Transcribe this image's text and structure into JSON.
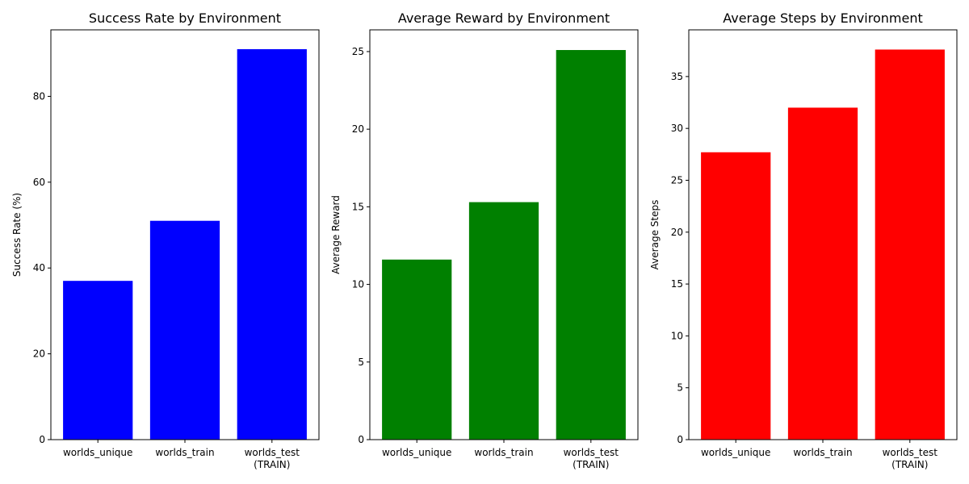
{
  "chart_data": [
    {
      "type": "bar",
      "title": "Success Rate by Environment",
      "xlabel": "",
      "ylabel": "Success Rate (%)",
      "categories": [
        "worlds_unique",
        "worlds_train",
        "worlds_test\n(TRAIN)"
      ],
      "values": [
        37.0,
        51.0,
        91.0
      ],
      "ylim": [
        0,
        95.5
      ],
      "yticks": [
        0,
        20,
        40,
        60,
        80
      ],
      "color": "#0000ff",
      "grid": false
    },
    {
      "type": "bar",
      "title": "Average Reward by Environment",
      "xlabel": "",
      "ylabel": "Average Reward",
      "categories": [
        "worlds_unique",
        "worlds_train",
        "worlds_test\n(TRAIN)"
      ],
      "values": [
        11.6,
        15.3,
        25.1
      ],
      "ylim": [
        0,
        26.4
      ],
      "yticks": [
        0,
        5,
        10,
        15,
        20,
        25
      ],
      "color": "#008000",
      "grid": false
    },
    {
      "type": "bar",
      "title": "Average Steps by Environment",
      "xlabel": "",
      "ylabel": "Average Steps",
      "categories": [
        "worlds_unique",
        "worlds_train",
        "worlds_test\n(TRAIN)"
      ],
      "values": [
        27.7,
        32.0,
        37.6
      ],
      "ylim": [
        0,
        39.5
      ],
      "yticks": [
        0,
        5,
        10,
        15,
        20,
        25,
        30,
        35
      ],
      "color": "#ff0000",
      "grid": false
    }
  ]
}
